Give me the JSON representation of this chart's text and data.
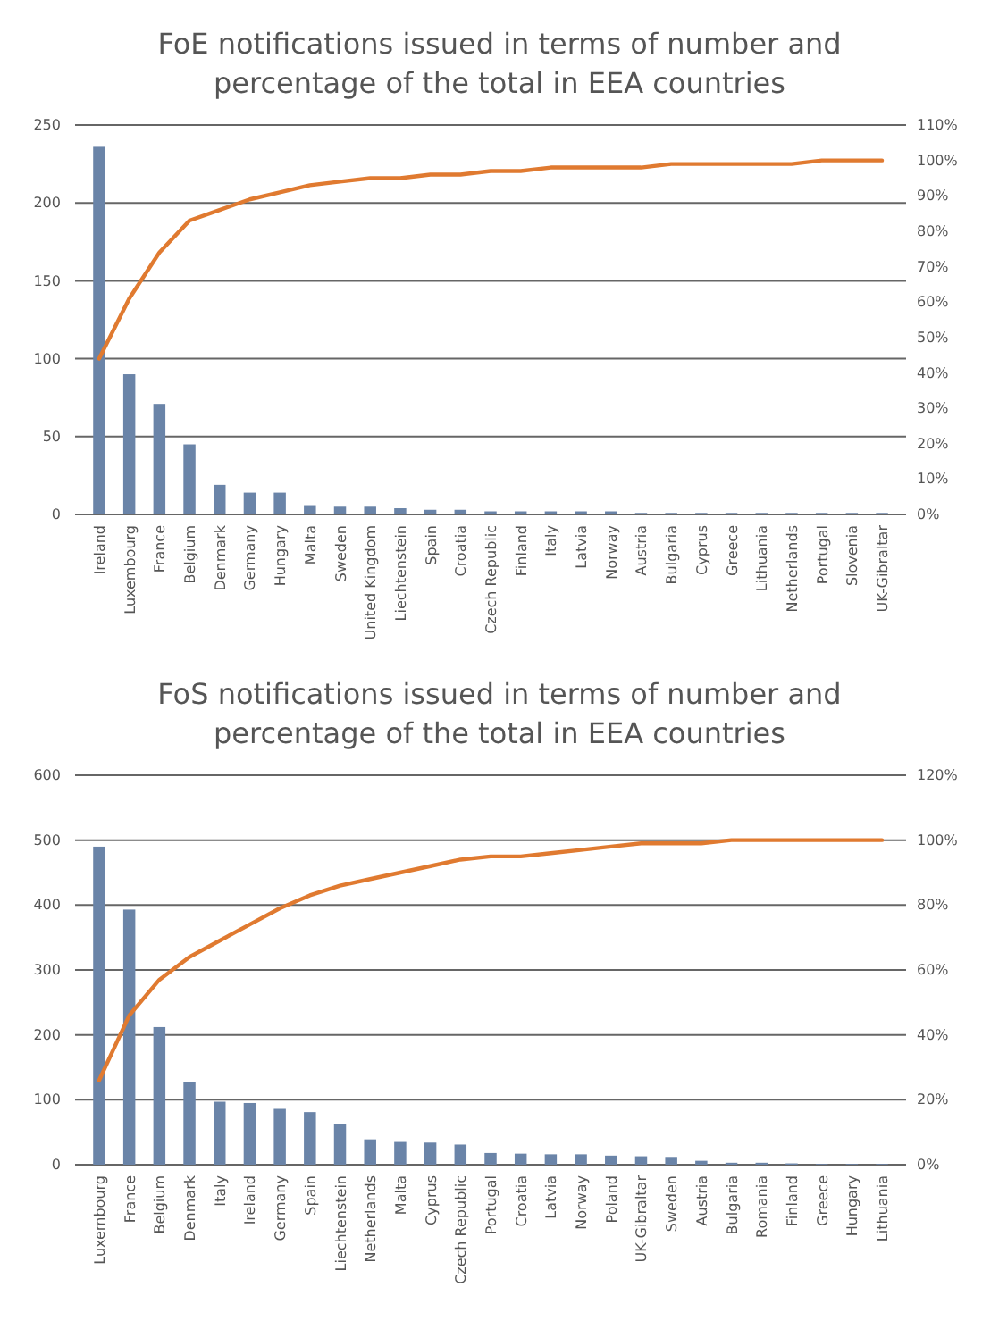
{
  "chart_data": [
    {
      "type": "bar",
      "title": "FoE notifications issued in terms of number and percentage of the total in EEA countries",
      "categories": [
        "Ireland",
        "Luxembourg",
        "France",
        "Belgium",
        "Denmark",
        "Germany",
        "Hungary",
        "Malta",
        "Sweden",
        "United Kingdom",
        "Liechtenstein",
        "Spain",
        "Croatia",
        "Czech Republic",
        "Finland",
        "Italy",
        "Latvia",
        "Norway",
        "Austria",
        "Bulgaria",
        "Cyprus",
        "Greece",
        "Lithuania",
        "Netherlands",
        "Portugal",
        "Slovenia",
        "UK-Gibraltar"
      ],
      "series": [
        {
          "color": "#6a84a8",
          "values": [
            236,
            90,
            71,
            45,
            19,
            14,
            14,
            6,
            5,
            5,
            4,
            3,
            3,
            2,
            2,
            2,
            2,
            2,
            1,
            1,
            1,
            1,
            1,
            1,
            1,
            1,
            1
          ]
        },
        {
          "type": "line",
          "axis": "y2",
          "color": "#e07a30",
          "values": [
            44,
            61,
            74,
            83,
            86,
            89,
            91,
            93,
            94,
            95,
            95,
            96,
            96,
            97,
            97,
            98,
            98,
            98,
            98,
            99,
            99,
            99,
            99,
            99,
            100,
            100,
            100
          ]
        }
      ],
      "ylim": [
        0,
        250
      ],
      "yticks": [
        0,
        50,
        100,
        150,
        200,
        250
      ],
      "y2lim": [
        0,
        110
      ],
      "y2ticks": [
        {
          "value": 0,
          "label": "0%"
        },
        {
          "value": 10,
          "label": "10%"
        },
        {
          "value": 20,
          "label": "20%"
        },
        {
          "value": 30,
          "label": "30%"
        },
        {
          "value": 40,
          "label": "40%"
        },
        {
          "value": 50,
          "label": "50%"
        },
        {
          "value": 60,
          "label": "60%"
        },
        {
          "value": 70,
          "label": "70%"
        },
        {
          "value": 80,
          "label": "80%"
        },
        {
          "value": 90,
          "label": "90%"
        },
        {
          "value": 100,
          "label": "100%"
        },
        {
          "value": 110,
          "label": "110%"
        }
      ],
      "grid": "y",
      "marker": "none"
    },
    {
      "type": "bar",
      "title": "FoS notifications issued in terms of number and percentage of the total in EEA countries",
      "categories": [
        "Luxembourg",
        "France",
        "Belgium",
        "Denmark",
        "Italy",
        "Ireland",
        "Germany",
        "Spain",
        "Liechtenstein",
        "Netherlands",
        "Malta",
        "Cyprus",
        "Czech Republic",
        "Portugal",
        "Croatia",
        "Latvia",
        "Norway",
        "Poland",
        "UK-Gibraltar",
        "Sweden",
        "Austria",
        "Bulgaria",
        "Romania",
        "Finland",
        "Greece",
        "Hungary",
        "Lithuania"
      ],
      "series": [
        {
          "color": "#6a84a8",
          "values": [
            490,
            393,
            212,
            127,
            97,
            95,
            86,
            81,
            63,
            39,
            35,
            34,
            31,
            18,
            17,
            16,
            16,
            14,
            13,
            12,
            6,
            3,
            3,
            2,
            1,
            1,
            1
          ]
        },
        {
          "type": "line",
          "axis": "y2",
          "color": "#e07a30",
          "values": [
            26,
            46,
            57,
            64,
            69,
            74,
            79,
            83,
            86,
            88,
            90,
            92,
            94,
            95,
            95,
            96,
            97,
            98,
            99,
            99,
            99,
            100,
            100,
            100,
            100,
            100,
            100
          ]
        }
      ],
      "ylim": [
        0,
        600
      ],
      "yticks": [
        0,
        100,
        200,
        300,
        400,
        500,
        600
      ],
      "y2lim": [
        0,
        120
      ],
      "y2ticks": [
        {
          "value": 0,
          "label": "0%"
        },
        {
          "value": 20,
          "label": "20%"
        },
        {
          "value": 40,
          "label": "40%"
        },
        {
          "value": 60,
          "label": "60%"
        },
        {
          "value": 80,
          "label": "80%"
        },
        {
          "value": 100,
          "label": "100%"
        },
        {
          "value": 120,
          "label": "120%"
        }
      ],
      "grid": "y",
      "marker": "none"
    }
  ]
}
